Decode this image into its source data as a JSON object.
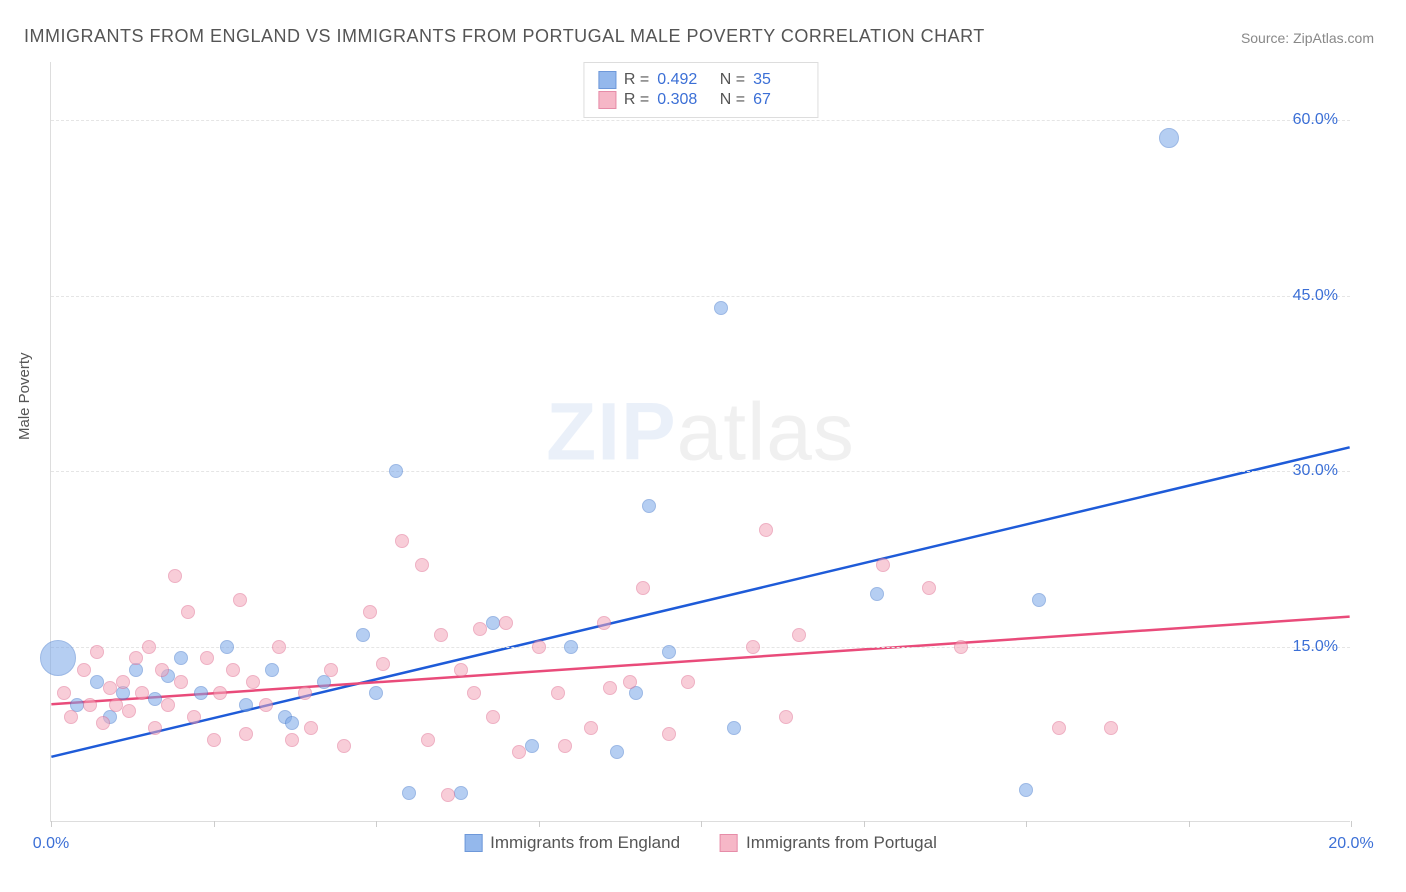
{
  "title": "IMMIGRANTS FROM ENGLAND VS IMMIGRANTS FROM PORTUGAL MALE POVERTY CORRELATION CHART",
  "source": "Source: ZipAtlas.com",
  "watermark_bold": "ZIP",
  "watermark_rest": "atlas",
  "ylabel": "Male Poverty",
  "chart": {
    "type": "scatter",
    "background_color": "#ffffff",
    "grid_color": "#e5e5e5",
    "grid_dash": "4,4",
    "border_color": "#dddddd",
    "xlim": [
      0,
      20
    ],
    "ylim": [
      0,
      65
    ],
    "xtick_positions": [
      0,
      2.5,
      5,
      7.5,
      10,
      12.5,
      15,
      17.5,
      20
    ],
    "xtick_labels": {
      "0": "0.0%",
      "20": "20.0%"
    },
    "ytick_positions": [
      15,
      30,
      45,
      60
    ],
    "ytick_labels": {
      "15": "15.0%",
      "30": "30.0%",
      "45": "45.0%",
      "60": "60.0%"
    },
    "label_color": "#3b6fd6",
    "label_fontsize": 16,
    "title_color": "#555555",
    "title_fontsize": 18,
    "point_radius": 7,
    "point_opacity": 0.55,
    "series": [
      {
        "name": "Immigrants from England",
        "fill": "#7aa7e8",
        "stroke": "#4b7fd0",
        "trend_color": "#1e5bd8",
        "trend_width": 2.5,
        "trend": {
          "x1": 0,
          "y1": 5.5,
          "x2": 20,
          "y2": 32
        },
        "r_value": "0.492",
        "n_value": "35",
        "points": [
          {
            "x": 0.1,
            "y": 14,
            "r": 18
          },
          {
            "x": 0.4,
            "y": 10
          },
          {
            "x": 0.7,
            "y": 12
          },
          {
            "x": 0.9,
            "y": 9
          },
          {
            "x": 1.1,
            "y": 11
          },
          {
            "x": 1.3,
            "y": 13
          },
          {
            "x": 1.6,
            "y": 10.5
          },
          {
            "x": 1.8,
            "y": 12.5
          },
          {
            "x": 2.0,
            "y": 14
          },
          {
            "x": 2.3,
            "y": 11
          },
          {
            "x": 2.7,
            "y": 15
          },
          {
            "x": 3.0,
            "y": 10
          },
          {
            "x": 3.4,
            "y": 13
          },
          {
            "x": 3.6,
            "y": 9
          },
          {
            "x": 3.7,
            "y": 8.5
          },
          {
            "x": 4.2,
            "y": 12
          },
          {
            "x": 4.8,
            "y": 16
          },
          {
            "x": 5.0,
            "y": 11
          },
          {
            "x": 5.3,
            "y": 30
          },
          {
            "x": 5.5,
            "y": 2.5
          },
          {
            "x": 6.3,
            "y": 2.5
          },
          {
            "x": 6.8,
            "y": 17
          },
          {
            "x": 7.4,
            "y": 6.5
          },
          {
            "x": 8.0,
            "y": 15
          },
          {
            "x": 8.7,
            "y": 6
          },
          {
            "x": 9.0,
            "y": 11
          },
          {
            "x": 9.2,
            "y": 27
          },
          {
            "x": 9.5,
            "y": 14.5
          },
          {
            "x": 10.3,
            "y": 44
          },
          {
            "x": 10.5,
            "y": 8
          },
          {
            "x": 12.7,
            "y": 19.5
          },
          {
            "x": 15.0,
            "y": 2.7
          },
          {
            "x": 15.2,
            "y": 19
          },
          {
            "x": 17.2,
            "y": 58.5,
            "r": 10
          }
        ]
      },
      {
        "name": "Immigrants from Portugal",
        "fill": "#f4a6ba",
        "stroke": "#e17093",
        "trend_color": "#e94b7a",
        "trend_width": 2.5,
        "trend": {
          "x1": 0,
          "y1": 10,
          "x2": 20,
          "y2": 17.5
        },
        "r_value": "0.308",
        "n_value": "67",
        "points": [
          {
            "x": 0.2,
            "y": 11
          },
          {
            "x": 0.3,
            "y": 9
          },
          {
            "x": 0.5,
            "y": 13
          },
          {
            "x": 0.6,
            "y": 10
          },
          {
            "x": 0.7,
            "y": 14.5
          },
          {
            "x": 0.8,
            "y": 8.5
          },
          {
            "x": 0.9,
            "y": 11.5
          },
          {
            "x": 1.0,
            "y": 10
          },
          {
            "x": 1.1,
            "y": 12
          },
          {
            "x": 1.2,
            "y": 9.5
          },
          {
            "x": 1.3,
            "y": 14
          },
          {
            "x": 1.4,
            "y": 11
          },
          {
            "x": 1.5,
            "y": 15
          },
          {
            "x": 1.6,
            "y": 8
          },
          {
            "x": 1.7,
            "y": 13
          },
          {
            "x": 1.8,
            "y": 10
          },
          {
            "x": 1.9,
            "y": 21
          },
          {
            "x": 2.0,
            "y": 12
          },
          {
            "x": 2.1,
            "y": 18
          },
          {
            "x": 2.2,
            "y": 9
          },
          {
            "x": 2.4,
            "y": 14
          },
          {
            "x": 2.5,
            "y": 7
          },
          {
            "x": 2.6,
            "y": 11
          },
          {
            "x": 2.8,
            "y": 13
          },
          {
            "x": 2.9,
            "y": 19
          },
          {
            "x": 3.0,
            "y": 7.5
          },
          {
            "x": 3.1,
            "y": 12
          },
          {
            "x": 3.3,
            "y": 10
          },
          {
            "x": 3.5,
            "y": 15
          },
          {
            "x": 3.7,
            "y": 7
          },
          {
            "x": 3.9,
            "y": 11
          },
          {
            "x": 4.0,
            "y": 8
          },
          {
            "x": 4.3,
            "y": 13
          },
          {
            "x": 4.5,
            "y": 6.5
          },
          {
            "x": 4.9,
            "y": 18
          },
          {
            "x": 5.1,
            "y": 13.5
          },
          {
            "x": 5.4,
            "y": 24
          },
          {
            "x": 5.7,
            "y": 22
          },
          {
            "x": 5.8,
            "y": 7
          },
          {
            "x": 6.0,
            "y": 16
          },
          {
            "x": 6.1,
            "y": 2.3
          },
          {
            "x": 6.3,
            "y": 13
          },
          {
            "x": 6.5,
            "y": 11
          },
          {
            "x": 6.6,
            "y": 16.5
          },
          {
            "x": 6.8,
            "y": 9
          },
          {
            "x": 7.0,
            "y": 17
          },
          {
            "x": 7.2,
            "y": 6
          },
          {
            "x": 7.5,
            "y": 15
          },
          {
            "x": 7.8,
            "y": 11
          },
          {
            "x": 7.9,
            "y": 6.5
          },
          {
            "x": 8.3,
            "y": 8
          },
          {
            "x": 8.5,
            "y": 17
          },
          {
            "x": 8.6,
            "y": 11.5
          },
          {
            "x": 8.9,
            "y": 12
          },
          {
            "x": 9.1,
            "y": 20
          },
          {
            "x": 9.5,
            "y": 7.5
          },
          {
            "x": 9.8,
            "y": 12
          },
          {
            "x": 10.8,
            "y": 15
          },
          {
            "x": 11.0,
            "y": 25
          },
          {
            "x": 11.3,
            "y": 9
          },
          {
            "x": 11.5,
            "y": 16
          },
          {
            "x": 12.8,
            "y": 22
          },
          {
            "x": 13.5,
            "y": 20
          },
          {
            "x": 14.0,
            "y": 15
          },
          {
            "x": 15.5,
            "y": 8
          },
          {
            "x": 16.3,
            "y": 8
          }
        ]
      }
    ]
  },
  "legend": {
    "series1_label": "Immigrants from England",
    "series2_label": "Immigrants from Portugal"
  }
}
